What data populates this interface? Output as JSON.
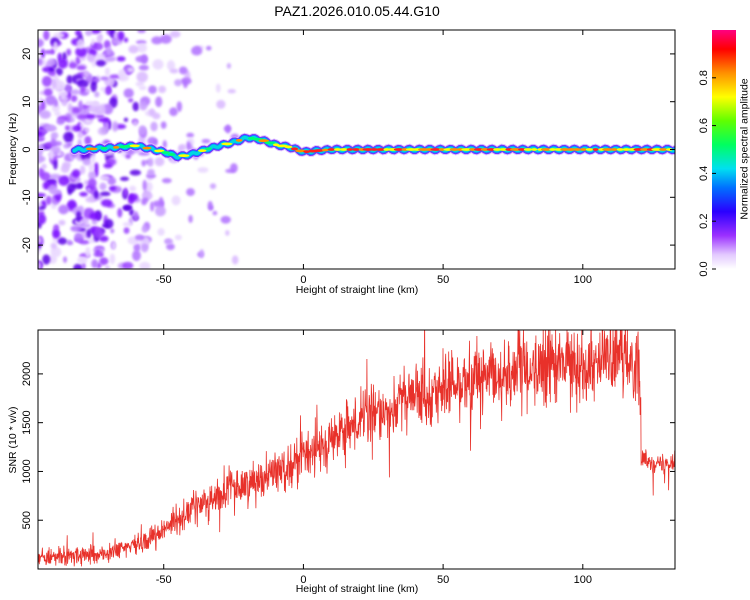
{
  "title": "PAZ1.2026.010.05.44.G10",
  "chart_data": [
    {
      "type": "heatmap",
      "name": "spectrogram",
      "xlabel": "Height of straight line (km)",
      "ylabel": "Frequency (Hz)",
      "xlim": [
        -95,
        133
      ],
      "ylim": [
        -25,
        25
      ],
      "xticks": [
        -50,
        0,
        50,
        100
      ],
      "yticks": [
        -20,
        -10,
        0,
        10,
        20
      ],
      "colorbar": {
        "label": "Normalized spectral amplitude",
        "range": [
          0.0,
          1.0
        ],
        "ticks": [
          0.0,
          0.2,
          0.4,
          0.6,
          0.8
        ]
      },
      "ridge": {
        "description_points_x": [
          -80,
          -70,
          -60,
          -50,
          -45,
          -40,
          -35,
          -30,
          -25,
          -20,
          -15,
          -10,
          -5,
          0,
          10,
          30,
          50,
          70,
          90,
          110,
          133
        ],
        "frequency_y": [
          0,
          0.3,
          0.8,
          -0.5,
          -1.5,
          -1,
          0,
          0.8,
          1.5,
          2.5,
          2,
          1,
          0.5,
          -0.5,
          0,
          0,
          0,
          0,
          0,
          0,
          0
        ]
      }
    },
    {
      "type": "line",
      "name": "snr",
      "xlabel": "Height of straight line (km)",
      "ylabel": "SNR (10 * v/v)",
      "xlim": [
        -95,
        133
      ],
      "ylim": [
        0,
        2450
      ],
      "xticks": [
        -50,
        0,
        50,
        100
      ],
      "yticks": [
        500,
        1000,
        1500,
        2000
      ],
      "color": "#e8312a",
      "trend": {
        "x": [
          -95,
          -80,
          -70,
          -60,
          -50,
          -40,
          -30,
          -20,
          -10,
          0,
          10,
          20,
          30,
          40,
          50,
          60,
          70,
          80,
          90,
          100,
          110,
          120,
          121,
          125,
          133
        ],
        "y": [
          120,
          130,
          160,
          250,
          400,
          620,
          760,
          880,
          1000,
          1150,
          1320,
          1500,
          1650,
          1780,
          1860,
          1920,
          1980,
          2030,
          2080,
          2120,
          2150,
          2160,
          1150,
          1080,
          1100
        ]
      }
    }
  ]
}
